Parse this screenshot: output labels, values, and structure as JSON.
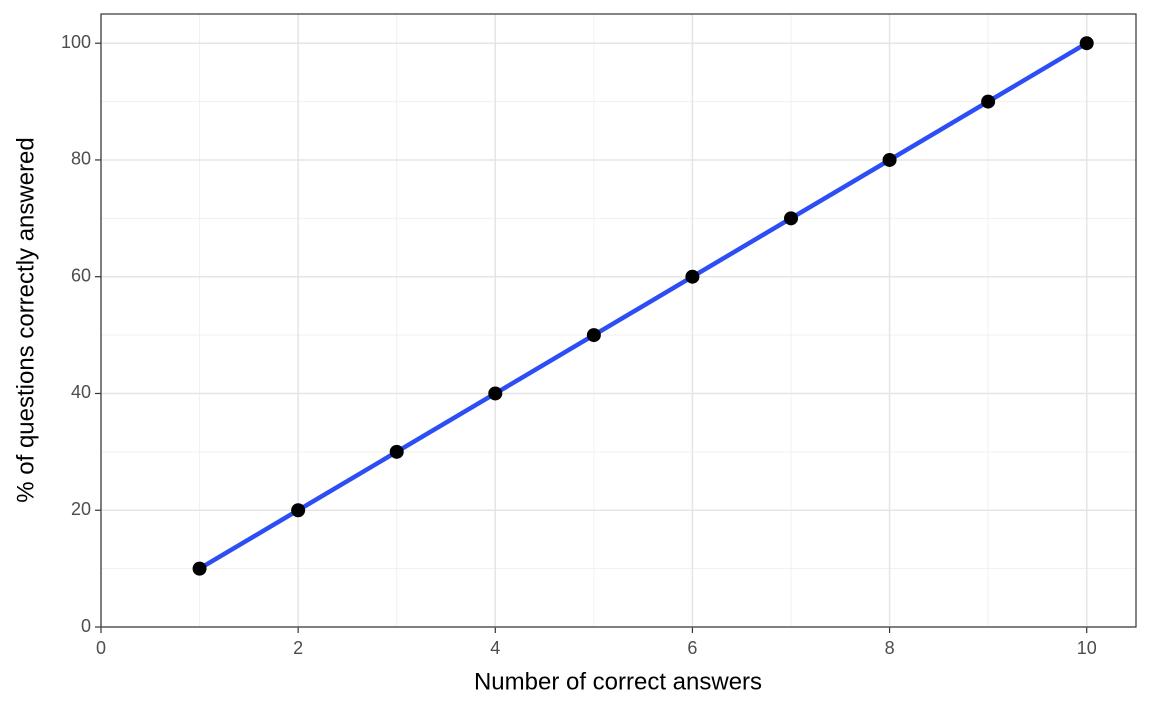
{
  "chart_data": {
    "type": "line",
    "x_label": "Number of correct answers",
    "y_label": "% of questions correctly answered",
    "x": [
      1,
      2,
      3,
      4,
      5,
      6,
      7,
      8,
      9,
      10
    ],
    "series": [
      {
        "color": "#2d4ef5",
        "marker_color": "#000000",
        "values": [
          10,
          20,
          30,
          40,
          50,
          60,
          70,
          80,
          90,
          100
        ]
      }
    ],
    "xlim": [
      0,
      10.5
    ],
    "xticks": [
      0,
      2,
      4,
      6,
      8,
      10
    ],
    "ylim": [
      0,
      105
    ],
    "yticks": [
      0,
      20,
      40,
      60,
      80,
      100
    ],
    "grid": true
  }
}
